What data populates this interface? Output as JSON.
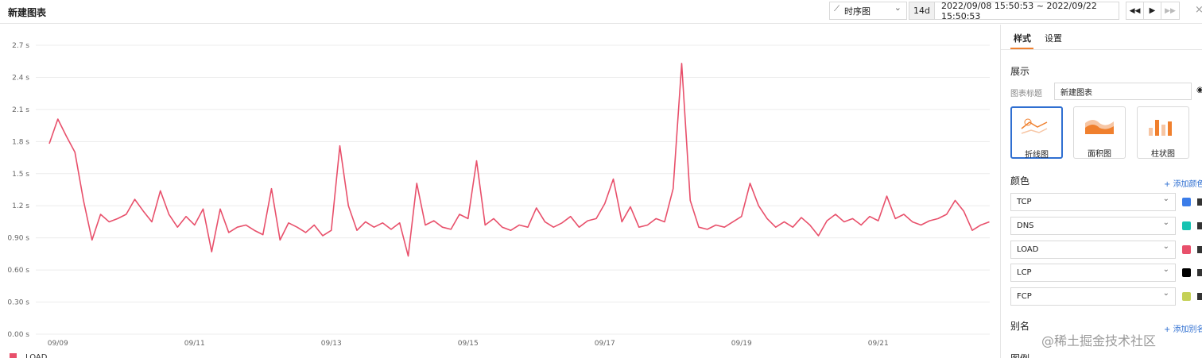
{
  "header": {
    "title": "新建图表",
    "chart_type": "时序图",
    "range_short": "14d",
    "range": "2022/09/08 15:50:53 ~ 2022/09/22 15:50:53"
  },
  "chart_data": {
    "type": "line",
    "categories": [
      null,
      "09/09",
      null,
      null,
      null,
      null,
      null,
      null,
      null,
      null,
      null,
      null,
      null,
      null,
      null,
      null,
      null,
      "09/11",
      null,
      null,
      null,
      null,
      null,
      null,
      null,
      null,
      null,
      null,
      null,
      null,
      null,
      null,
      null,
      "09/13",
      null,
      null,
      null,
      null,
      null,
      null,
      null,
      null,
      null,
      null,
      null,
      null,
      null,
      null,
      null,
      "09/15",
      null,
      null,
      null,
      null,
      null,
      null,
      null,
      null,
      null,
      null,
      null,
      null,
      null,
      null,
      null,
      "09/17",
      null,
      null,
      null,
      null,
      null,
      null,
      null,
      null,
      null,
      null,
      null,
      null,
      null,
      null,
      null,
      "09/19",
      null,
      null,
      null,
      null,
      null,
      null,
      null,
      null,
      null,
      null,
      null,
      null,
      null,
      null,
      null,
      "09/21",
      null,
      null,
      null,
      null,
      null,
      null,
      null,
      null,
      null,
      null,
      null,
      null,
      null
    ],
    "series": [
      {
        "name": "LOAD",
        "color": "#e8506b",
        "values": [
          1.78,
          2.01,
          1.85,
          1.7,
          1.25,
          0.88,
          1.12,
          1.05,
          1.08,
          1.12,
          1.26,
          1.15,
          1.05,
          1.34,
          1.12,
          1.0,
          1.1,
          1.02,
          1.17,
          0.77,
          1.17,
          0.95,
          1.0,
          1.02,
          0.97,
          0.93,
          1.36,
          0.88,
          1.04,
          1.0,
          0.95,
          1.02,
          0.92,
          0.97,
          1.76,
          1.2,
          0.97,
          1.05,
          1.0,
          1.04,
          0.98,
          1.04,
          0.73,
          1.41,
          1.02,
          1.06,
          1.0,
          0.98,
          1.12,
          1.08,
          1.62,
          1.02,
          1.08,
          1.0,
          0.97,
          1.02,
          1.0,
          1.18,
          1.05,
          1.0,
          1.04,
          1.1,
          1.0,
          1.06,
          1.08,
          1.22,
          1.45,
          1.05,
          1.19,
          1.0,
          1.02,
          1.08,
          1.05,
          1.36,
          2.53,
          1.25,
          1.0,
          0.98,
          1.02,
          1.0,
          1.05,
          1.1,
          1.41,
          1.2,
          1.08,
          1.0,
          1.05,
          1.0,
          1.09,
          1.02,
          0.92,
          1.06,
          1.12,
          1.05,
          1.08,
          1.02,
          1.1,
          1.06,
          1.29,
          1.08,
          1.12,
          1.05,
          1.02,
          1.06,
          1.08,
          1.12,
          1.25,
          1.15,
          0.97,
          1.02,
          1.05
        ]
      }
    ],
    "ylim": [
      0,
      2.7
    ],
    "yticks": [
      {
        "value": 0,
        "label": "0.00 s"
      },
      {
        "value": 0.3,
        "label": "0.30 s"
      },
      {
        "value": 0.6,
        "label": "0.60 s"
      },
      {
        "value": 0.9,
        "label": "0.90 s"
      },
      {
        "value": 1.2,
        "label": "1.2 s"
      },
      {
        "value": 1.5,
        "label": "1.5 s"
      },
      {
        "value": 1.8,
        "label": "1.8 s"
      },
      {
        "value": 2.1,
        "label": "2.1 s"
      },
      {
        "value": 2.4,
        "label": "2.4 s"
      },
      {
        "value": 2.7,
        "label": "2.7 s"
      }
    ],
    "grid": true
  },
  "panel": {
    "tabs": [
      "样式",
      "设置"
    ],
    "display_heading": "展示",
    "title_label": "图表标题",
    "title_value": "新建图表",
    "chart_kinds": [
      "折线图",
      "面积图",
      "柱状图"
    ],
    "color_heading": "颜色",
    "add_color": "添加颜色",
    "colors": [
      {
        "name": "TCP",
        "color": "#3b7de9"
      },
      {
        "name": "DNS",
        "color": "#17c3b2"
      },
      {
        "name": "LOAD",
        "color": "#e8506b"
      },
      {
        "name": "LCP",
        "color": "#000000"
      },
      {
        "name": "FCP",
        "color": "#c5d156"
      }
    ],
    "alias_heading": "别名",
    "add_alias": "添加别名",
    "legend_heading": "图例"
  },
  "watermark": "@稀土掘金技术社区"
}
